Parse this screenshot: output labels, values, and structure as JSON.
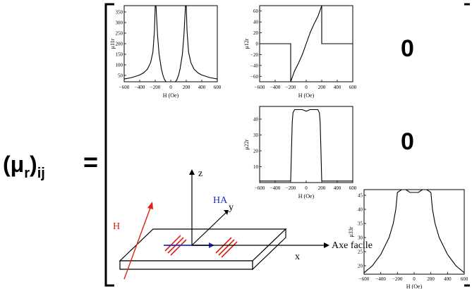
{
  "matrix": {
    "lhs_symbol": "(μ",
    "lhs_sub_r": "r",
    "lhs_close": ")",
    "lhs_sub_ij": "ij",
    "equals": "=",
    "zeros": [
      "0",
      "0"
    ]
  },
  "charts": [
    {
      "id": "mu11r",
      "type": "line",
      "ylabel": "μ11r",
      "xlabel": "H (Oe)",
      "xticks": [
        "−600",
        "−400",
        "−200",
        "0",
        "200",
        "400",
        "600"
      ],
      "yticks": [
        "50",
        "100",
        "150",
        "200",
        "250",
        "300",
        "350"
      ],
      "xlim": [
        -600,
        600
      ],
      "ylim": [
        20,
        380
      ]
    },
    {
      "id": "mu12r",
      "type": "line",
      "ylabel": "μ12r",
      "xlabel": "H (Oe)",
      "xticks": [
        "−600",
        "−400",
        "−200",
        "0",
        "200",
        "400",
        "600"
      ],
      "yticks": [
        "−60",
        "−40",
        "−20",
        "0",
        "20",
        "40",
        "60"
      ],
      "xlim": [
        -600,
        600
      ],
      "ylim": [
        -70,
        70
      ]
    },
    {
      "id": "mu22r",
      "type": "line",
      "ylabel": "μ22r",
      "xlabel": "H (Oe)",
      "xticks": [
        "−600",
        "−400",
        "−200",
        "0",
        "200",
        "400",
        "600"
      ],
      "yticks": [
        "10",
        "20",
        "30",
        "40"
      ],
      "xlim": [
        -600,
        600
      ],
      "ylim": [
        0,
        48
      ]
    },
    {
      "id": "mu33r",
      "type": "line",
      "ylabel": "μ33r",
      "xlabel": "H (Oe)",
      "xticks": [
        "−600",
        "−400",
        "−200",
        "0",
        "200",
        "400",
        "600"
      ],
      "yticks": [
        "20",
        "25",
        "30",
        "35",
        "40",
        "45"
      ],
      "xlim": [
        -600,
        600
      ],
      "ylim": [
        17,
        47
      ]
    }
  ],
  "chart_data": [
    {
      "type": "line",
      "xlabel": "H (Oe)",
      "ylabel": "μ11r",
      "xlim": [
        -600,
        600
      ],
      "ylim": [
        20,
        380
      ],
      "series": [
        {
          "x": [
            -600,
            -500,
            -400,
            -350,
            -300,
            -260,
            -230,
            -210,
            -200,
            -190,
            -170,
            -150,
            -120,
            -100,
            -80,
            -60,
            -40,
            -20,
            0,
            20,
            40,
            60,
            80,
            100,
            120,
            150,
            170,
            190,
            200,
            210,
            230,
            260,
            300,
            350,
            400,
            500,
            600
          ],
          "values": [
            33,
            40,
            52,
            62,
            80,
            110,
            160,
            260,
            380,
            380,
            240,
            150,
            80,
            50,
            30,
            20,
            20,
            20,
            20,
            20,
            20,
            20,
            30,
            50,
            80,
            150,
            240,
            380,
            380,
            260,
            160,
            110,
            80,
            62,
            52,
            40,
            33
          ]
        }
      ]
    },
    {
      "type": "line",
      "xlabel": "H (Oe)",
      "ylabel": "μ12r",
      "xlim": [
        -600,
        600
      ],
      "ylim": [
        -70,
        70
      ],
      "series": [
        {
          "x": [
            -600,
            -200,
            -200,
            -200,
            -180,
            -150,
            -100,
            -50,
            0,
            50,
            100,
            150,
            180,
            200,
            200,
            200,
            600
          ],
          "values": [
            0,
            0,
            -70,
            -70,
            -62,
            -50,
            -36,
            -20,
            0,
            20,
            36,
            50,
            62,
            70,
            70,
            0,
            0
          ]
        }
      ]
    },
    {
      "type": "line",
      "xlabel": "H (Oe)",
      "ylabel": "μ22r",
      "xlim": [
        -600,
        600
      ],
      "ylim": [
        0,
        48
      ],
      "series": [
        {
          "x": [
            -600,
            -200,
            -200,
            -190,
            -180,
            -170,
            -150,
            -100,
            -50,
            0,
            50,
            100,
            150,
            170,
            180,
            190,
            200,
            200,
            600
          ],
          "values": [
            1,
            1,
            1,
            20,
            38,
            44,
            46,
            46,
            46,
            45,
            46,
            46,
            46,
            44,
            38,
            20,
            1,
            1,
            1
          ]
        }
      ]
    },
    {
      "type": "line",
      "xlabel": "H (Oe)",
      "ylabel": "μ33r",
      "xlim": [
        -600,
        600
      ],
      "ylim": [
        17,
        47
      ],
      "series": [
        {
          "x": [
            -600,
            -500,
            -400,
            -300,
            -250,
            -220,
            -200,
            -150,
            -100,
            -50,
            0,
            50,
            100,
            150,
            200,
            220,
            250,
            300,
            400,
            500,
            600
          ],
          "values": [
            17.5,
            20,
            24,
            30,
            35,
            40,
            46,
            47,
            47,
            46,
            46,
            46,
            47,
            47,
            46,
            40,
            35,
            30,
            24,
            20,
            17.5
          ]
        }
      ]
    }
  ],
  "diagram": {
    "axis_z": "z",
    "axis_y": "y",
    "axis_x": "x",
    "label_ha": "HA",
    "label_h": "H",
    "label_easy": "Axe facile"
  }
}
